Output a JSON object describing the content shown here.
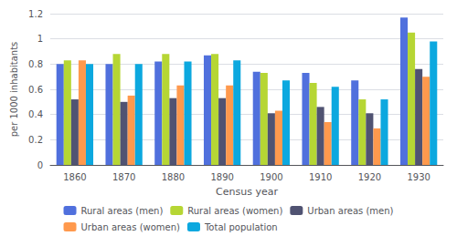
{
  "chart_data": {
    "type": "bar",
    "categories": [
      "1860",
      "1870",
      "1880",
      "1890",
      "1900",
      "1910",
      "1920",
      "1930"
    ],
    "series": [
      {
        "name": "Rural areas (men)",
        "values": [
          0.8,
          0.8,
          0.82,
          0.87,
          0.74,
          0.73,
          0.67,
          1.17
        ]
      },
      {
        "name": "Rural areas (women)",
        "values": [
          0.83,
          0.88,
          0.88,
          0.88,
          0.73,
          0.65,
          0.52,
          1.05
        ]
      },
      {
        "name": "Urban areas (men)",
        "values": [
          0.52,
          0.5,
          0.53,
          0.53,
          0.41,
          0.46,
          0.41,
          0.76
        ]
      },
      {
        "name": "Urban areas (women)",
        "values": [
          0.83,
          0.55,
          0.63,
          0.63,
          0.43,
          0.34,
          0.29,
          0.7
        ]
      },
      {
        "name": "Total population",
        "values": [
          0.8,
          0.8,
          0.82,
          0.83,
          0.67,
          0.62,
          0.52,
          0.98
        ]
      }
    ],
    "xlabel": "Census year",
    "ylabel": "per 1000 inhabitants",
    "ylim": [
      0,
      1.2
    ],
    "yticks": [
      0,
      0.2,
      0.4,
      0.6,
      0.8,
      1,
      1.2
    ],
    "grid": true,
    "legend": "bottom"
  }
}
